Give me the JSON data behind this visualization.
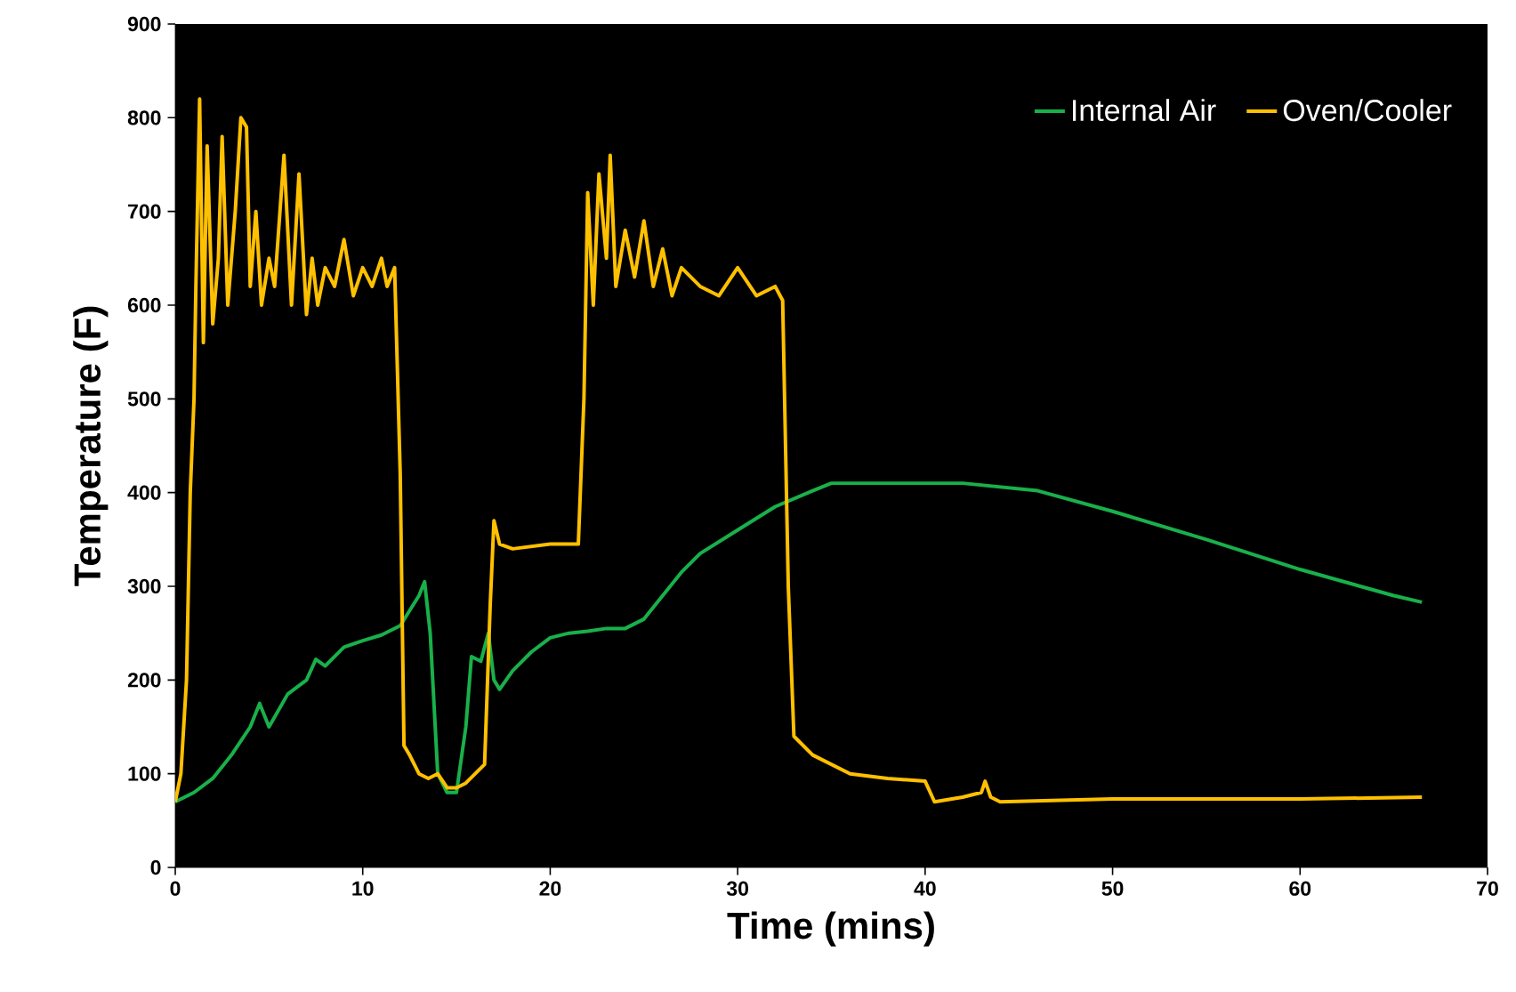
{
  "chart_data": {
    "type": "line",
    "xlabel": "Time (mins)",
    "ylabel": "Temperature (F)",
    "xlim": [
      0,
      70
    ],
    "xticks": [
      0,
      10,
      20,
      30,
      40,
      50,
      60,
      70
    ],
    "ylim": [
      0,
      900
    ],
    "yticks": [
      0,
      100,
      200,
      300,
      400,
      500,
      600,
      700,
      800,
      900
    ],
    "grid": false,
    "legend": "top right",
    "marker": "none",
    "line_style": "solid",
    "series": [
      {
        "name": "Internal Air",
        "color": "#19b04b",
        "x": [
          0,
          1,
          2,
          3,
          4,
          4.5,
          5,
          6,
          7,
          7.5,
          8,
          9,
          10,
          11,
          12,
          13,
          13.3,
          13.6,
          14,
          14.5,
          15,
          15.5,
          15.8,
          16.3,
          16.7,
          17,
          17.3,
          18,
          19,
          20,
          21,
          22,
          23,
          24,
          25,
          26,
          27,
          28,
          30,
          32,
          34,
          35,
          38,
          42,
          46,
          50,
          55,
          60,
          65,
          66.5
        ],
        "values": [
          70,
          80,
          95,
          120,
          150,
          175,
          150,
          185,
          200,
          222,
          215,
          235,
          242,
          248,
          258,
          290,
          305,
          250,
          100,
          80,
          80,
          150,
          225,
          220,
          250,
          200,
          190,
          210,
          230,
          245,
          250,
          252,
          255,
          255,
          265,
          290,
          315,
          335,
          360,
          385,
          402,
          410,
          410,
          410,
          402,
          380,
          350,
          318,
          290,
          283
        ]
      },
      {
        "name": "Oven/Cooler",
        "color": "#ffc000",
        "x": [
          0,
          0.3,
          0.6,
          0.8,
          1,
          1.1,
          1.3,
          1.5,
          1.7,
          2,
          2.3,
          2.5,
          2.8,
          3.2,
          3.5,
          3.8,
          4,
          4.3,
          4.6,
          5,
          5.3,
          5.8,
          6.2,
          6.6,
          7,
          7.3,
          7.6,
          8,
          8.5,
          9,
          9.5,
          10,
          10.5,
          11,
          11.3,
          11.7,
          12,
          12.2,
          12.5,
          13,
          13.5,
          14,
          14.5,
          15,
          15.5,
          16,
          16.5,
          16.8,
          17,
          17.3,
          18,
          20,
          21.5,
          21.8,
          22,
          22.3,
          22.6,
          23,
          23.2,
          23.5,
          24,
          24.5,
          25,
          25.5,
          26,
          26.5,
          27,
          28,
          29,
          30,
          31,
          32,
          32.4,
          32.7,
          33,
          34,
          35,
          36,
          38,
          40,
          40.5,
          42,
          43,
          43.2,
          43.5,
          44,
          50,
          60,
          66.5
        ],
        "values": [
          70,
          100,
          200,
          400,
          500,
          620,
          820,
          560,
          770,
          580,
          650,
          780,
          600,
          700,
          800,
          790,
          620,
          700,
          600,
          650,
          620,
          760,
          600,
          740,
          590,
          650,
          600,
          640,
          620,
          670,
          610,
          640,
          620,
          650,
          620,
          640,
          420,
          130,
          120,
          100,
          95,
          100,
          85,
          85,
          90,
          100,
          110,
          280,
          370,
          345,
          340,
          345,
          345,
          500,
          720,
          600,
          740,
          650,
          760,
          620,
          680,
          630,
          690,
          620,
          660,
          610,
          640,
          620,
          610,
          640,
          610,
          620,
          605,
          300,
          140,
          120,
          110,
          100,
          95,
          92,
          70,
          75,
          80,
          92,
          75,
          70,
          73,
          73,
          75
        ]
      }
    ]
  }
}
